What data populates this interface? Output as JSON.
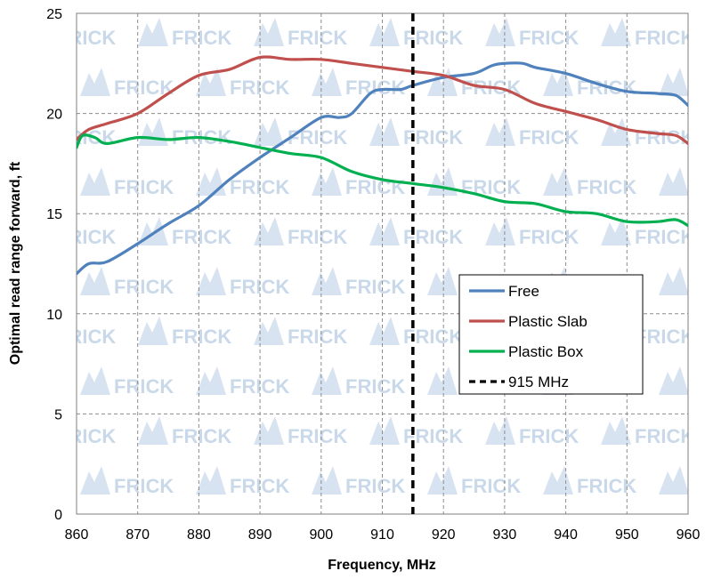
{
  "chart_data": {
    "type": "line",
    "title": "",
    "xlabel": "Frequency, MHz",
    "ylabel": "Optimal read range forward, ft",
    "xlim": [
      860,
      960
    ],
    "ylim": [
      0,
      25
    ],
    "xticks": [
      860,
      870,
      880,
      890,
      900,
      910,
      920,
      930,
      940,
      950,
      960
    ],
    "yticks": [
      0,
      5,
      10,
      15,
      20,
      25
    ],
    "grid": true,
    "legend_position": "center-right",
    "watermark": "FRICK",
    "series": [
      {
        "name": "Free",
        "color": "#4f81bd",
        "x": [
          860,
          862,
          865,
          870,
          875,
          880,
          885,
          890,
          895,
          900,
          903,
          905,
          908,
          910,
          913,
          915,
          920,
          925,
          928,
          930,
          933,
          935,
          940,
          945,
          950,
          955,
          958,
          960
        ],
        "y": [
          12.0,
          12.5,
          12.6,
          13.5,
          14.5,
          15.4,
          16.7,
          17.8,
          18.8,
          19.8,
          19.8,
          20.0,
          21.0,
          21.2,
          21.2,
          21.4,
          21.8,
          22.0,
          22.4,
          22.5,
          22.5,
          22.3,
          22.0,
          21.5,
          21.1,
          21.0,
          20.9,
          20.4
        ]
      },
      {
        "name": "Plastic Slab",
        "color": "#c0504d",
        "x": [
          860,
          862,
          865,
          870,
          875,
          880,
          885,
          890,
          895,
          900,
          905,
          910,
          915,
          920,
          925,
          930,
          935,
          940,
          945,
          950,
          955,
          958,
          960
        ],
        "y": [
          18.7,
          19.2,
          19.5,
          20.0,
          21.0,
          21.9,
          22.2,
          22.8,
          22.7,
          22.7,
          22.5,
          22.3,
          22.1,
          21.9,
          21.4,
          21.2,
          20.5,
          20.1,
          19.7,
          19.2,
          19.0,
          18.9,
          18.5
        ]
      },
      {
        "name": "Plastic Box",
        "color": "#00b050",
        "x": [
          860,
          861,
          863,
          865,
          870,
          875,
          880,
          885,
          890,
          895,
          900,
          905,
          910,
          915,
          920,
          925,
          930,
          935,
          940,
          945,
          950,
          955,
          958,
          960
        ],
        "y": [
          18.3,
          18.9,
          18.8,
          18.5,
          18.8,
          18.7,
          18.8,
          18.6,
          18.3,
          18.0,
          17.8,
          17.1,
          16.7,
          16.5,
          16.3,
          16.0,
          15.6,
          15.5,
          15.1,
          15.0,
          14.6,
          14.6,
          14.7,
          14.4
        ]
      }
    ],
    "reference_line": {
      "name": "915 MHz",
      "x": 915,
      "color": "#000000",
      "style": "dashed"
    }
  }
}
